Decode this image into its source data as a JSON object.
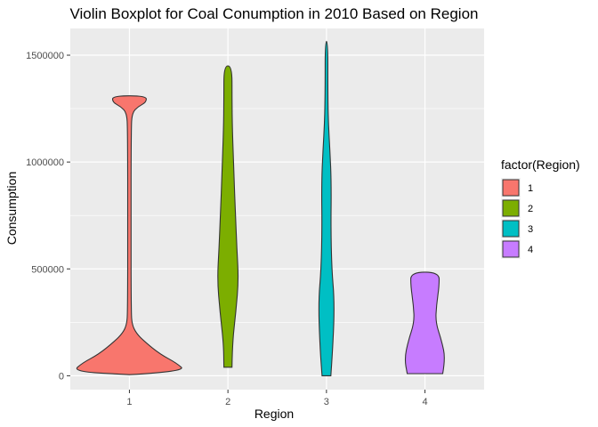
{
  "chart_data": {
    "type": "violin",
    "title": "Violin Boxplot for Coal Conumption in 2010 Based on Region",
    "xlabel": "Region",
    "ylabel": "Consumption",
    "categories": [
      "1",
      "2",
      "3",
      "4"
    ],
    "ylim": [
      -65000,
      1625000
    ],
    "yticks": [
      0,
      500000,
      1000000,
      1500000
    ],
    "ytick_labels": [
      "0",
      "500000",
      "1000000",
      "1500000"
    ],
    "grid": true,
    "legend": {
      "title": "factor(Region)",
      "position": "right",
      "entries": [
        "1",
        "2",
        "3",
        "4"
      ]
    },
    "colors": {
      "panel_bg": "#ebebeb",
      "grid_major": "#ffffff",
      "outline": "#333333",
      "series": [
        "#f8766d",
        "#7cae00",
        "#00bfc4",
        "#c77cff"
      ]
    },
    "series": [
      {
        "category": "1",
        "min": 5000,
        "max": 1310000,
        "density": [
          [
            5000,
            0.0
          ],
          [
            20000,
            0.64
          ],
          [
            60000,
            0.53
          ],
          [
            100000,
            0.35
          ],
          [
            160000,
            0.17
          ],
          [
            200000,
            0.075
          ],
          [
            240000,
            0.03
          ],
          [
            300000,
            0.02
          ],
          [
            700000,
            0.018
          ],
          [
            1150000,
            0.02
          ],
          [
            1230000,
            0.03
          ],
          [
            1260000,
            0.1
          ],
          [
            1280000,
            0.19
          ],
          [
            1310000,
            0.19
          ]
        ]
      },
      {
        "category": "2",
        "min": 40000,
        "max": 1450000,
        "density": [
          [
            40000,
            0.046
          ],
          [
            150000,
            0.05
          ],
          [
            300000,
            0.09
          ],
          [
            450000,
            0.12
          ],
          [
            600000,
            0.1
          ],
          [
            750000,
            0.085
          ],
          [
            950000,
            0.067
          ],
          [
            1150000,
            0.05
          ],
          [
            1300000,
            0.046
          ],
          [
            1450000,
            0.046
          ]
        ]
      },
      {
        "category": "3",
        "min": 0,
        "max": 1565000,
        "density": [
          [
            0,
            0.05
          ],
          [
            150000,
            0.075
          ],
          [
            350000,
            0.09
          ],
          [
            500000,
            0.06
          ],
          [
            700000,
            0.05
          ],
          [
            900000,
            0.055
          ],
          [
            1050000,
            0.04
          ],
          [
            1200000,
            0.02
          ],
          [
            1350000,
            0.015
          ],
          [
            1565000,
            0.015
          ]
        ]
      },
      {
        "category": "4",
        "min": 10000,
        "max": 485000,
        "density": [
          [
            10000,
            0.2
          ],
          [
            80000,
            0.23
          ],
          [
            160000,
            0.19
          ],
          [
            250000,
            0.12
          ],
          [
            330000,
            0.13
          ],
          [
            420000,
            0.16
          ],
          [
            485000,
            0.16
          ]
        ]
      }
    ]
  }
}
